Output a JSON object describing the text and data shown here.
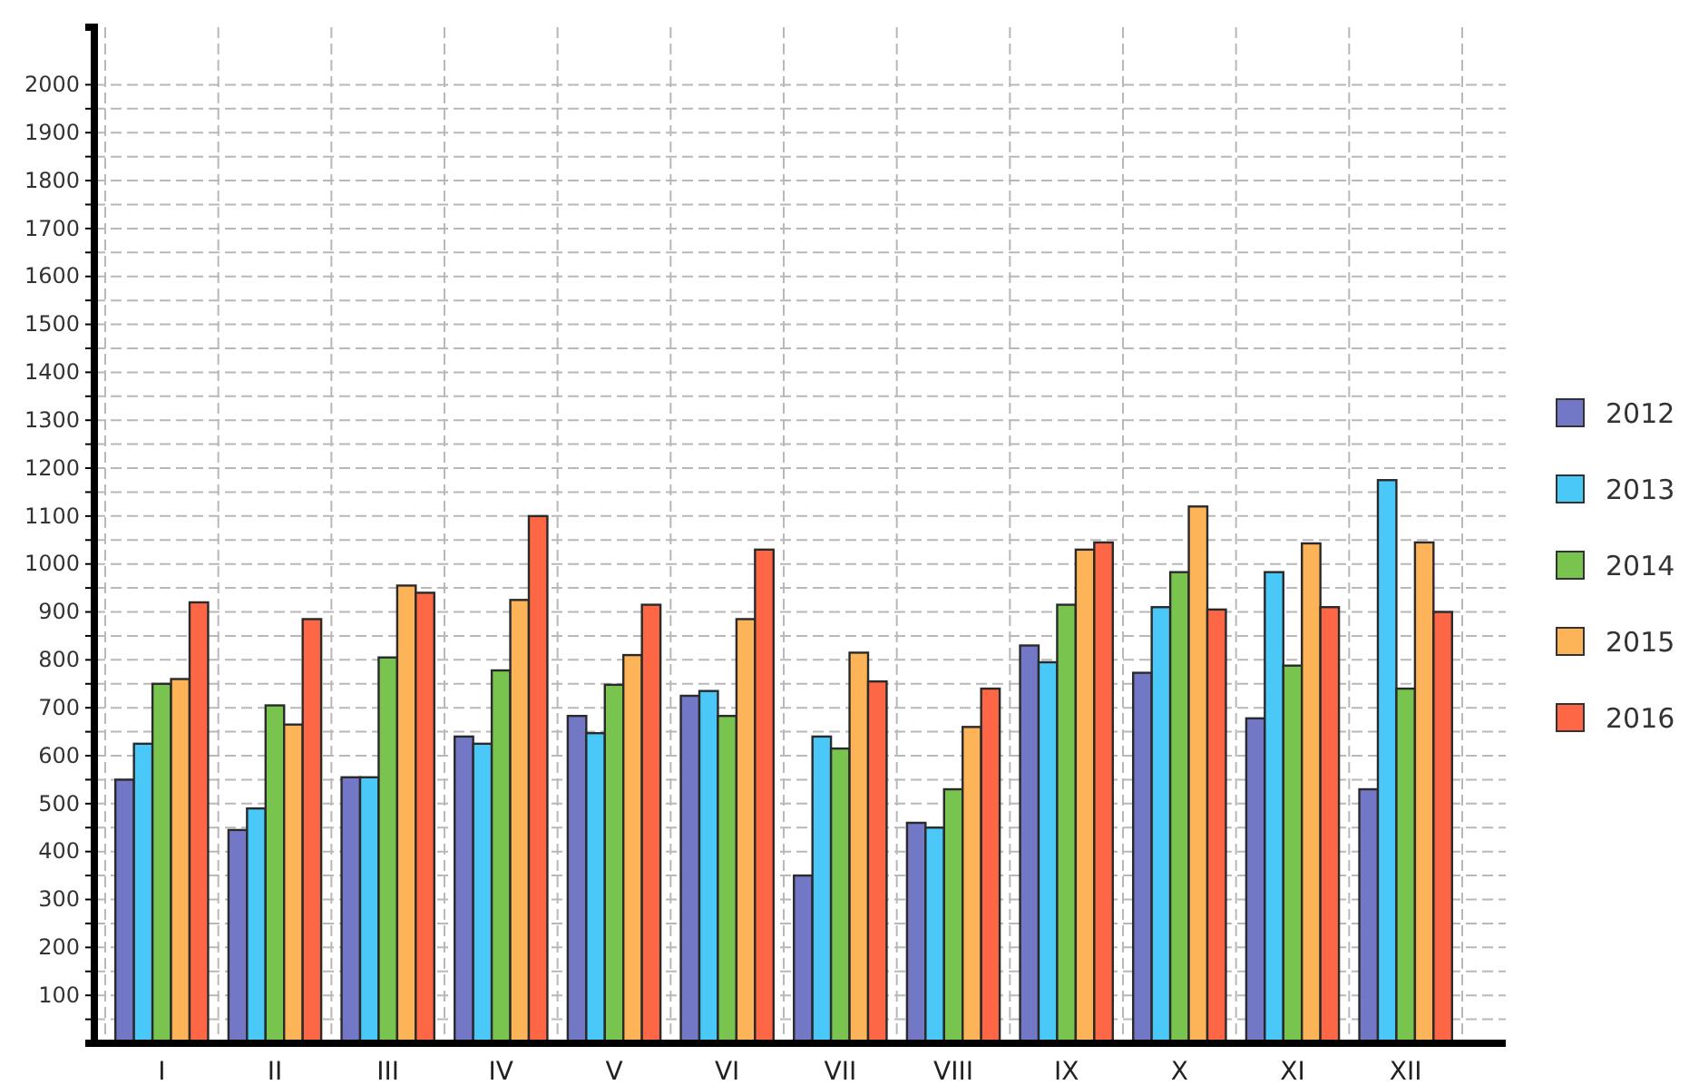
{
  "chart_data": {
    "type": "bar",
    "categories": [
      "I",
      "II",
      "III",
      "IV",
      "V",
      "VI",
      "VII",
      "VIII",
      "IX",
      "X",
      "XI",
      "XII"
    ],
    "series": [
      {
        "name": "2012",
        "color": "#7277c6",
        "values": [
          550,
          445,
          555,
          640,
          683,
          725,
          350,
          460,
          830,
          773,
          678,
          530
        ]
      },
      {
        "name": "2013",
        "color": "#4ac9f9",
        "values": [
          625,
          490,
          555,
          625,
          647,
          735,
          640,
          450,
          795,
          910,
          983,
          1175
        ]
      },
      {
        "name": "2014",
        "color": "#78c44e",
        "values": [
          750,
          705,
          805,
          778,
          748,
          683,
          615,
          530,
          915,
          983,
          788,
          740
        ]
      },
      {
        "name": "2015",
        "color": "#fdb358",
        "values": [
          760,
          665,
          955,
          925,
          810,
          885,
          815,
          660,
          1030,
          1120,
          1043,
          1045
        ]
      },
      {
        "name": "2016",
        "color": "#fd6746",
        "values": [
          920,
          885,
          940,
          1100,
          915,
          1030,
          755,
          740,
          1045,
          905,
          910,
          900
        ]
      }
    ],
    "ylim": [
      0,
      2120
    ],
    "yticks": [
      {
        "value": 50,
        "label": null
      },
      100,
      {
        "value": 150,
        "label": null
      },
      200,
      {
        "value": 250,
        "label": null
      },
      300,
      {
        "value": 350,
        "label": null
      },
      400,
      {
        "value": 450,
        "label": null
      },
      500,
      {
        "value": 550,
        "label": null
      },
      600,
      {
        "value": 650,
        "label": null
      },
      700,
      {
        "value": 750,
        "label": null
      },
      800,
      {
        "value": 850,
        "label": null
      },
      900,
      {
        "value": 950,
        "label": null
      },
      1000,
      {
        "value": 1050,
        "label": null
      },
      1100,
      {
        "value": 1150,
        "label": null
      },
      1200,
      {
        "value": 1250,
        "label": null
      },
      1300,
      {
        "value": 1350,
        "label": null
      },
      1400,
      {
        "value": 1450,
        "label": null
      },
      1500,
      {
        "value": 1550,
        "label": null
      },
      1600,
      {
        "value": 1650,
        "label": null
      },
      1700,
      {
        "value": 1750,
        "label": null
      },
      1800,
      {
        "value": 1850,
        "label": null
      },
      1900,
      {
        "value": 1950,
        "label": null
      },
      2000
    ],
    "grid": true,
    "legend": "right"
  }
}
